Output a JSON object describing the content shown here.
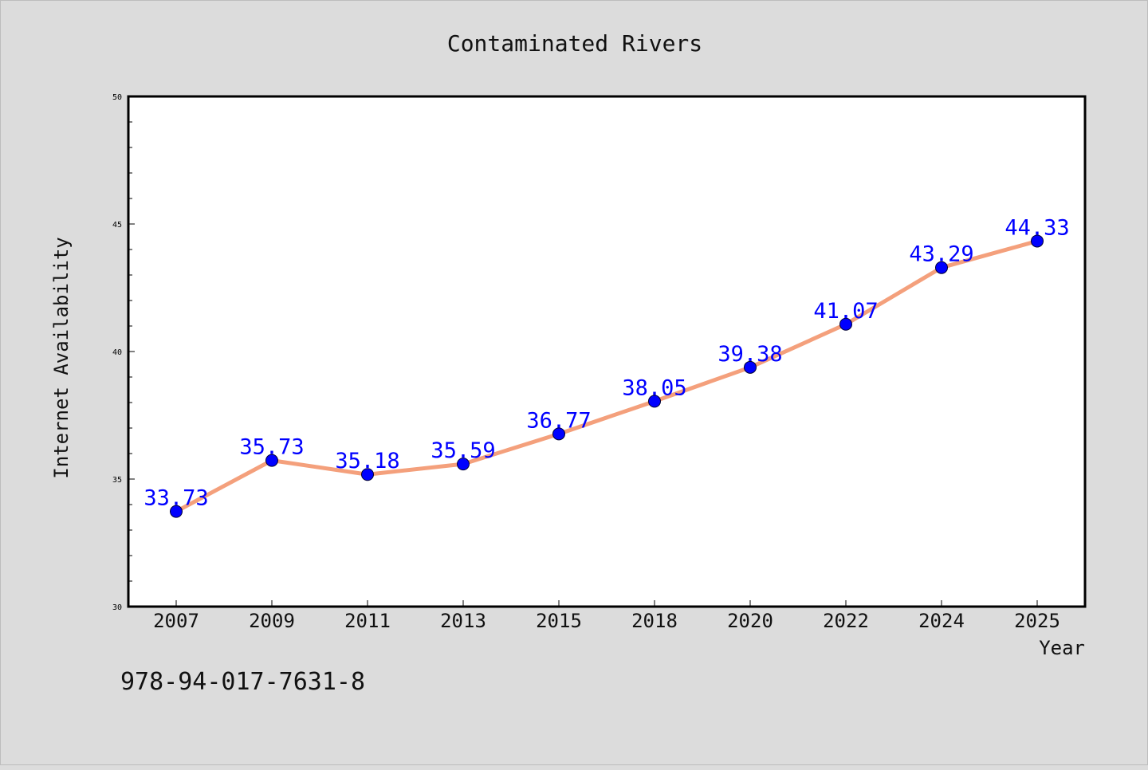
{
  "chart_data": {
    "type": "line",
    "title": "Contaminated Rivers",
    "xlabel": "Year",
    "ylabel": "Internet Availability",
    "categories": [
      "2007",
      "2009",
      "2011",
      "2013",
      "2015",
      "2018",
      "2020",
      "2022",
      "2024",
      "2025"
    ],
    "series": [
      {
        "values": [
          33.73,
          35.73,
          35.18,
          35.59,
          36.77,
          38.05,
          39.38,
          41.07,
          43.29,
          44.33
        ]
      }
    ],
    "data_labels": [
      "33.73",
      "35.73",
      "35.18",
      "35.59",
      "36.77",
      "38.05",
      "39.38",
      "41.07",
      "43.29",
      "44.33"
    ],
    "ylim": [
      30,
      50
    ],
    "y_ticks": [
      30,
      35,
      40,
      45,
      50
    ],
    "grid": false,
    "legend": "none",
    "colors": {
      "line": "#f4a07c",
      "marker": "#0000ff",
      "label": "#0000ff",
      "background": "#dcdcdc",
      "plot_background": "#ffffff"
    }
  },
  "isbn": "978-94-017-7631-8"
}
